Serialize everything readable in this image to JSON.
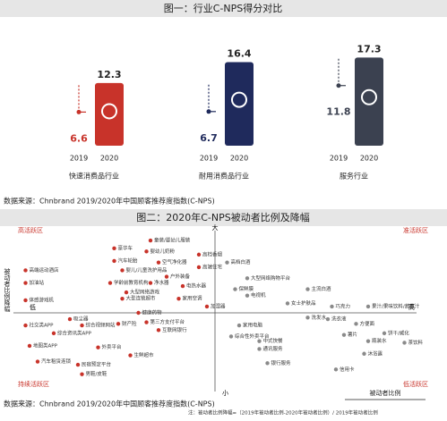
{
  "chart_data": [
    {
      "type": "bar",
      "title": "图一：行业C-NPS得分对比",
      "categories": [
        "快速消费品行业",
        "耐用消费品行业",
        "服务行业"
      ],
      "colors": [
        "#c8332a",
        "#1f2a5c",
        "#3b4150"
      ],
      "series": [
        {
          "name": "2019",
          "values": [
            6.6,
            6.7,
            11.8
          ]
        },
        {
          "name": "2020",
          "values": [
            12.3,
            16.4,
            17.3
          ]
        }
      ],
      "ylim": [
        0,
        20
      ],
      "source": "数据来源：Chnbrand 2019/2020年中国顾客推荐度指数(C-NPS)"
    },
    {
      "type": "scatter",
      "title": "图二：2020年C-NPS被动者比例及降幅",
      "xlabel": "被动者比例",
      "ylabel": "被动者比例降幅",
      "x_left": "低",
      "x_right": "高",
      "y_top": "大",
      "y_bottom": "小",
      "quadrant_labels": [
        "高活跃区",
        "准活跃区",
        "持续活跃区",
        "低活跃区"
      ],
      "xlim": [
        0,
        100
      ],
      "ylim": [
        0,
        100
      ],
      "series": [
        {
          "color": "#c8332a",
          "labels": [
            "童装/婴幼儿服装",
            "豪华车",
            "婴幼儿奶粉",
            "高档香烟",
            "汽车轮胎",
            "空气净化器",
            "高端住宅",
            "高端运动酒店",
            "婴儿/儿童洗护用品",
            "户外装备",
            "加油站",
            "学龄前教育机构",
            "净水器",
            "电热水器",
            "大型网络游戏",
            "大型连锁超市",
            "体感游戏机",
            "家用空调",
            "加湿器",
            "吸尘器",
            "综合视频网站",
            "财产险",
            "健康药物",
            "社交类APP",
            "综合资讯类APP",
            "第三方支付平台",
            "互联网银行",
            "地图类APP",
            "外卖平台",
            "生鲜超市",
            "汽车租赁连锁",
            "民宿预定平台",
            "男鞋/皮鞋"
          ],
          "x": [
            34,
            25,
            33,
            46,
            25,
            36,
            46,
            3,
            27,
            38,
            3,
            24,
            34,
            42,
            28,
            27,
            3,
            41,
            48,
            14,
            17,
            26,
            31,
            3,
            10,
            33,
            36,
            4,
            21,
            29,
            6,
            16,
            17
          ],
          "values": [
            96,
            91,
            89,
            87,
            83,
            82,
            79,
            77,
            77,
            73,
            69,
            69,
            69,
            67,
            63,
            59,
            58,
            59,
            54,
            46,
            42,
            43,
            50,
            42,
            37,
            44,
            39,
            29,
            28,
            23,
            19,
            17,
            11
          ]
        },
        {
          "color": "#8a8a8a",
          "labels": [
            "高档白酒",
            "大型网络购物平台",
            "保鲜膜",
            "主流白酒",
            "电视机",
            "女士护肤品",
            "巧克力",
            "果汁/果味饮料/蔬菜汁",
            "洗发水",
            "洗衣液",
            "方便面",
            "饼干/威化",
            "瓶装水",
            "茶饮料",
            "沐浴露",
            "薯片",
            "中式快餐",
            "通讯服务",
            "银行服务",
            "信用卡",
            "家用电脑",
            "综合性外卖平台"
          ],
          "x": [
            53,
            58,
            55,
            73,
            58,
            68,
            79,
            88,
            73,
            78,
            85,
            92,
            88,
            97,
            87,
            82,
            61,
            61,
            63,
            80,
            56,
            54
          ],
          "values": [
            82,
            72,
            65,
            65,
            61,
            56,
            54,
            54,
            47,
            46,
            43,
            37,
            32,
            31,
            24,
            36,
            32,
            27,
            18,
            14,
            42,
            35
          ]
        }
      ],
      "source": "数据来源：Chnbrand 2019/2020年中国顾客推荐度指数(C-NPS)",
      "note": "注：被动者比例降幅=（2019年被动者比例-2020年被动者比例）/ 2019年被动者比例"
    }
  ]
}
